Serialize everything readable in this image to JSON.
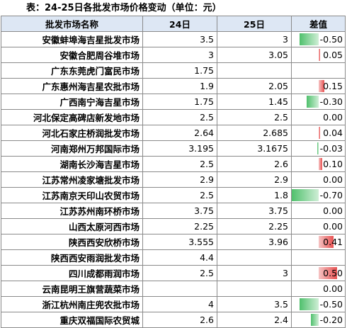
{
  "title": "表：24-25日各批发市场价格变动（单位：元）",
  "headers": {
    "market": "批发市场名称",
    "d24": "24日",
    "d25": "25日",
    "diff": "差值"
  },
  "colors": {
    "header_bg": "#dde7f4",
    "increase_bar": "#e85252",
    "decrease_bar": "#4fc06c"
  },
  "rows": [
    {
      "market": "安徽蚌埠海吉星批发市场",
      "d24": "3.5",
      "d25": "3",
      "diff": "-0.50",
      "change": -0.5
    },
    {
      "market": "安徽合肥周谷堆市场",
      "d24": "3",
      "d25": "3.05",
      "diff": "0.05",
      "change": 0.05
    },
    {
      "market": "广东东莞虎门富民市场",
      "d24": "1.75",
      "d25": "",
      "diff": "",
      "change": null
    },
    {
      "market": "广东惠州海吉星农批市场",
      "d24": "1.9",
      "d25": "2.05",
      "diff": "0.15",
      "change": 0.15
    },
    {
      "market": "广西南宁海吉星市场",
      "d24": "1.75",
      "d25": "1.45",
      "diff": "-0.30",
      "change": -0.3
    },
    {
      "market": "河北保定高碑店新发地市场",
      "d24": "2.5",
      "d25": "2.5",
      "diff": "0.00",
      "change": 0
    },
    {
      "market": "河北石家庄桥润批发市场",
      "d24": "2.64",
      "d25": "2.685",
      "diff": "0.04",
      "change": 0.045
    },
    {
      "market": "河南郑州万邦国际市场",
      "d24": "3.195",
      "d25": "3.1675",
      "diff": "-0.03",
      "change": -0.0275
    },
    {
      "market": "湖南长沙海吉星市场",
      "d24": "2.5",
      "d25": "2.6",
      "diff": "0.10",
      "change": 0.1
    },
    {
      "market": "江苏常州凌家塘批发市场",
      "d24": "2.9",
      "d25": "2.9",
      "diff": "0.00",
      "change": 0
    },
    {
      "market": "江苏南京天印山农贸市场",
      "d24": "2.5",
      "d25": "1.8",
      "diff": "-0.70",
      "change": -0.7
    },
    {
      "market": "江苏苏州南环桥市场",
      "d24": "3.75",
      "d25": "3.75",
      "diff": "0.00",
      "change": 0
    },
    {
      "market": "山西太原河西市场",
      "d24": "2.25",
      "d25": "2.25",
      "diff": "0.00",
      "change": 0
    },
    {
      "market": "陕西西安欣桥市场",
      "d24": "3.555",
      "d25": "3.96",
      "diff": "0.41",
      "change": 0.405
    },
    {
      "market": "陕西西安雨润批发市场",
      "d24": "4.4",
      "d25": "",
      "diff": "",
      "change": null
    },
    {
      "market": "四川成都雨润市场",
      "d24": "2.5",
      "d25": "3",
      "diff": "0.50",
      "change": 0.5
    },
    {
      "market": "云南昆明王旗营蔬菜市场",
      "d24": "",
      "d25": "",
      "diff": "0.00",
      "change": 0
    },
    {
      "market": "浙江杭州南庄兜农批市场",
      "d24": "4",
      "d25": "3.5",
      "diff": "-0.50",
      "change": -0.5
    },
    {
      "market": "重庆双福国际农贸城",
      "d24": "2.6",
      "d25": "2.4",
      "diff": "-0.20",
      "change": -0.2
    }
  ]
}
